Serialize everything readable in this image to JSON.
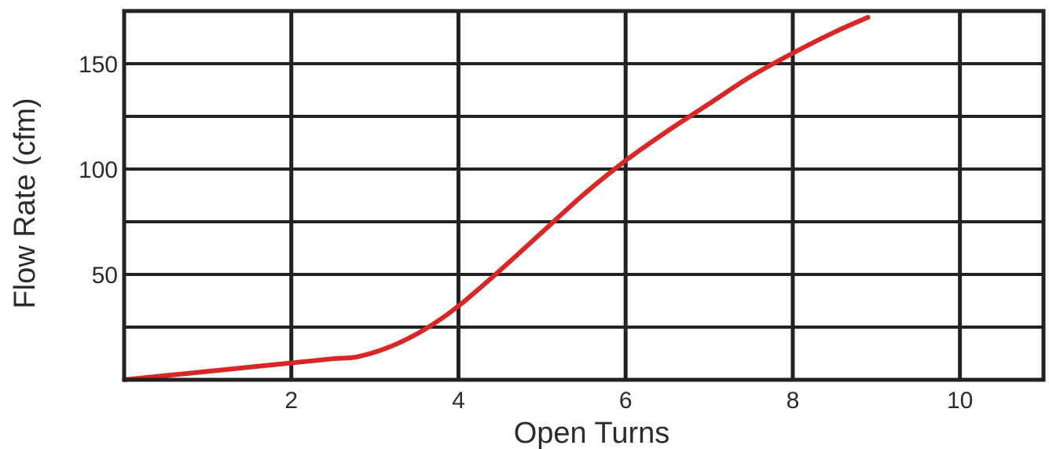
{
  "chart_data": {
    "type": "line",
    "title": "",
    "xlabel": "Open Turns",
    "ylabel": "Flow Rate (cfm)",
    "xlim": [
      0,
      11
    ],
    "ylim": [
      0,
      175
    ],
    "x_ticks": [
      2,
      4,
      6,
      8,
      10
    ],
    "y_ticks": [
      50,
      100,
      150
    ],
    "x_tick_labels": [
      "2",
      "4",
      "6",
      "8",
      "10"
    ],
    "y_tick_labels": [
      "50",
      "100",
      "150"
    ],
    "x_grid": [
      2,
      4,
      6,
      8,
      10
    ],
    "y_grid": [
      25,
      50,
      75,
      100,
      125,
      150
    ],
    "grid": true,
    "line_color": "#d92626",
    "grid_color": "#222222",
    "series": [
      {
        "name": "",
        "x": [
          0,
          0.5,
          1,
          1.5,
          2,
          2.5,
          2.8,
          3.2,
          3.6,
          4.0,
          4.5,
          5.0,
          5.5,
          6.0,
          6.5,
          7.0,
          7.5,
          8.0,
          8.5,
          8.9
        ],
        "y": [
          0,
          2,
          4,
          6,
          8,
          10,
          11,
          16,
          24,
          35,
          52,
          70,
          88,
          104,
          118,
          131,
          144,
          155,
          165,
          172
        ]
      }
    ]
  }
}
